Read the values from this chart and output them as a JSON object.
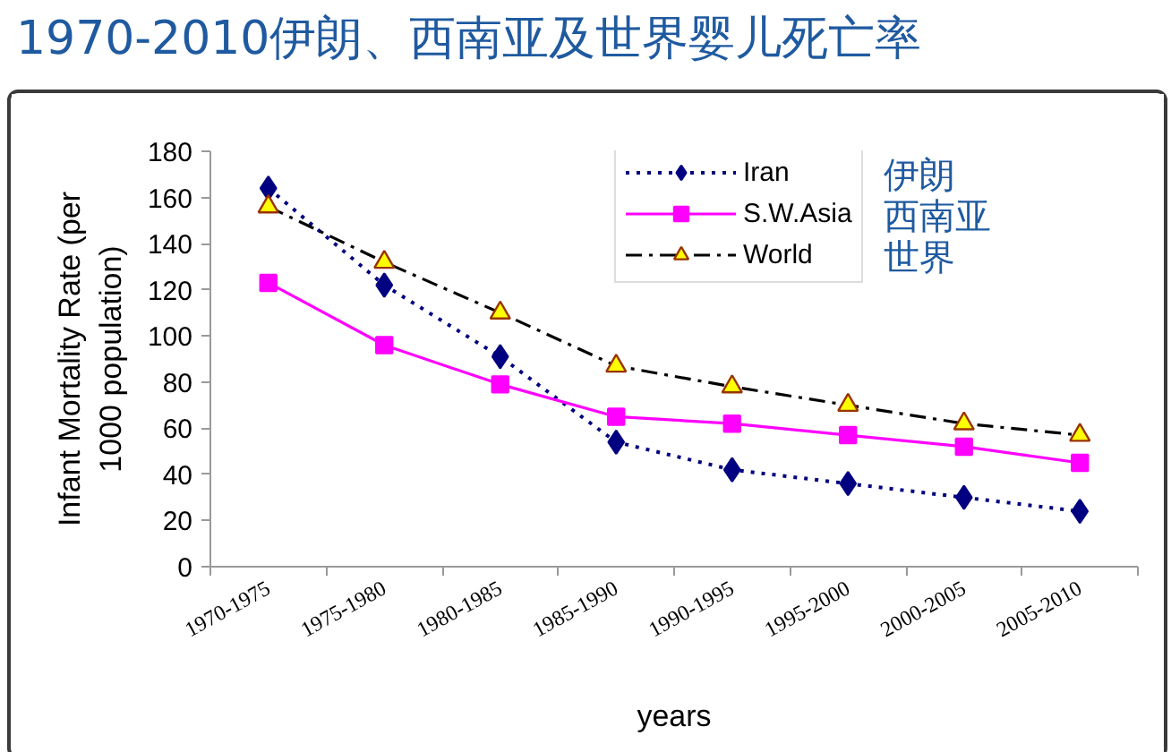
{
  "chart_data": {
    "type": "line",
    "title": "1970-2010伊朗、西南亚及世界婴儿死亡率",
    "xlabel": "years",
    "ylabel": "Infant Mortality Rate (per 1000 population)",
    "categories": [
      "1970-1975",
      "1975-1980",
      "1980-1985",
      "1985-1990",
      "1990-1995",
      "1995-2000",
      "2000-2005",
      "2005-2010"
    ],
    "series": [
      {
        "name": "Iran",
        "color": "#000080",
        "marker": "diamond",
        "line_style": "dotted",
        "values": [
          164,
          122,
          91,
          54,
          42,
          36,
          30,
          24
        ]
      },
      {
        "name": "S.W.Asia",
        "color": "#ff00ff",
        "marker": "square",
        "line_style": "solid",
        "values": [
          123,
          96,
          79,
          65,
          62,
          57,
          52,
          45
        ]
      },
      {
        "name": "World",
        "color": "#000000",
        "marker": "triangle",
        "line_style": "dashdot",
        "values": [
          156,
          132,
          110,
          87,
          78,
          70,
          62,
          57
        ]
      }
    ],
    "ylim": [
      0,
      180
    ],
    "yticks": [
      0,
      20,
      40,
      60,
      80,
      100,
      120,
      140,
      160,
      180
    ],
    "grid": false,
    "legend": "top right",
    "annotations": [
      "伊朗",
      "西南亚",
      "世界"
    ]
  }
}
